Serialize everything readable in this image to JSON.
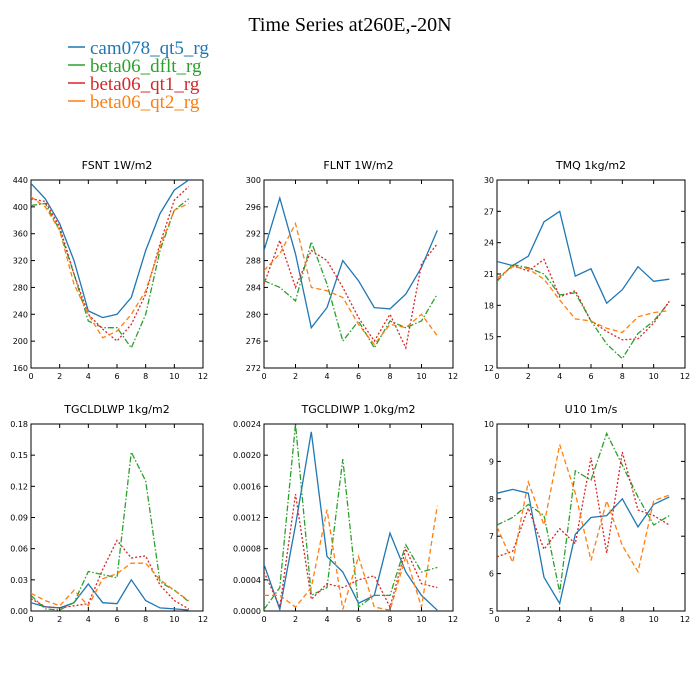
{
  "title": "Time Series at260E,-20N",
  "legend": [
    {
      "name": "cam078_qt5_rg",
      "color": "#1f77b4",
      "dash": "solid"
    },
    {
      "name": "beta06_dflt_rg",
      "color": "#2ca02c",
      "dash": "dashdot"
    },
    {
      "name": "beta06_qt1_rg",
      "color": "#d62728",
      "dash": "dot"
    },
    {
      "name": "beta06_qt2_rg",
      "color": "#ff7f0e",
      "dash": "dash"
    }
  ],
  "chart_data": [
    {
      "type": "line",
      "title": "FSNT   1W/m2",
      "x": [
        0,
        1,
        2,
        3,
        4,
        5,
        6,
        7,
        8,
        9,
        10,
        11
      ],
      "xlim": [
        0,
        12
      ],
      "xticks": [
        "0",
        "2",
        "4",
        "6",
        "8",
        "10",
        "12"
      ],
      "ylim": [
        160,
        440
      ],
      "yticks": [
        "160",
        "200",
        "240",
        "280",
        "320",
        "360",
        "400",
        "440"
      ],
      "series": [
        {
          "name": "cam078_qt5_rg",
          "values": [
            435,
            412,
            375,
            320,
            245,
            235,
            240,
            265,
            335,
            390,
            425,
            440
          ]
        },
        {
          "name": "beta06_dflt_rg",
          "values": [
            402,
            405,
            365,
            300,
            230,
            220,
            220,
            190,
            240,
            335,
            395,
            412
          ]
        },
        {
          "name": "beta06_qt1_rg",
          "values": [
            412,
            408,
            370,
            300,
            240,
            218,
            200,
            225,
            270,
            345,
            410,
            430
          ]
        },
        {
          "name": "beta06_qt2_rg",
          "values": [
            415,
            400,
            365,
            285,
            240,
            205,
            215,
            240,
            275,
            340,
            395,
            405
          ]
        }
      ]
    },
    {
      "type": "line",
      "title": "FLNT   1W/m2",
      "x": [
        0,
        1,
        2,
        3,
        4,
        5,
        6,
        7,
        8,
        9,
        10,
        11
      ],
      "xlim": [
        0,
        12
      ],
      "xticks": [
        "0",
        "2",
        "4",
        "6",
        "8",
        "10",
        "12"
      ],
      "ylim": [
        272,
        300
      ],
      "yticks": [
        "272",
        "276",
        "280",
        "284",
        "288",
        "292",
        "296",
        "300"
      ],
      "series": [
        {
          "name": "cam078_qt5_rg",
          "values": [
            289.5,
            297.3,
            289,
            278,
            281,
            288,
            285,
            281,
            280.8,
            283,
            287,
            292.5
          ]
        },
        {
          "name": "beta06_dflt_rg",
          "values": [
            285,
            284,
            282,
            290.8,
            284.5,
            276,
            279,
            275,
            279,
            278,
            279,
            283
          ]
        },
        {
          "name": "beta06_qt1_rg",
          "values": [
            284.5,
            291,
            284,
            289.5,
            288,
            284,
            279.5,
            276,
            280,
            275,
            287.5,
            290.5
          ]
        },
        {
          "name": "beta06_qt2_rg",
          "values": [
            286.5,
            289,
            293.5,
            284,
            283.5,
            282.5,
            278.5,
            275.5,
            278.5,
            278,
            280,
            276.8
          ]
        }
      ]
    },
    {
      "type": "line",
      "title": "TMQ   1kg/m2",
      "x": [
        0,
        1,
        2,
        3,
        4,
        5,
        6,
        7,
        8,
        9,
        10,
        11
      ],
      "xlim": [
        0,
        12
      ],
      "xticks": [
        "0",
        "2",
        "4",
        "6",
        "8",
        "10",
        "12"
      ],
      "ylim": [
        12,
        30
      ],
      "yticks": [
        "12",
        "15",
        "18",
        "21",
        "24",
        "27",
        "30"
      ],
      "series": [
        {
          "name": "cam078_qt5_rg",
          "values": [
            22.2,
            21.8,
            22.7,
            26,
            27,
            20.8,
            21.5,
            18.2,
            19.5,
            21.7,
            20.3,
            20.5
          ]
        },
        {
          "name": "beta06_dflt_rg",
          "values": [
            20.3,
            21.9,
            21.6,
            21,
            19,
            19.2,
            16.5,
            14.3,
            12.9,
            15.3,
            16.5,
            18.3
          ]
        },
        {
          "name": "beta06_qt1_rg",
          "values": [
            20.5,
            21.8,
            21.3,
            22.4,
            18.8,
            19.4,
            16.5,
            15.5,
            14.7,
            14.8,
            16.3,
            18.4
          ]
        },
        {
          "name": "beta06_qt2_rg",
          "values": [
            20.6,
            21.7,
            21.5,
            20.5,
            18.5,
            16.7,
            16.5,
            15.8,
            15.4,
            16.9,
            17.3,
            17.5
          ]
        }
      ]
    },
    {
      "type": "line",
      "title": "TGCLDLWP   1kg/m2",
      "x": [
        0,
        1,
        2,
        3,
        4,
        5,
        6,
        7,
        8,
        9,
        10,
        11
      ],
      "xlim": [
        0,
        12
      ],
      "xticks": [
        "0",
        "2",
        "4",
        "6",
        "8",
        "10",
        "12"
      ],
      "ylim": [
        0,
        0.18
      ],
      "yticks": [
        "0.00",
        "0.03",
        "0.06",
        "0.09",
        "0.12",
        "0.15",
        "0.18"
      ],
      "series": [
        {
          "name": "cam078_qt5_rg",
          "values": [
            0.008,
            0.004,
            0.003,
            0.008,
            0.026,
            0.008,
            0.007,
            0.03,
            0.01,
            0.003,
            0.002,
            0.001
          ]
        },
        {
          "name": "beta06_dflt_rg",
          "values": [
            0.015,
            0.002,
            0.001,
            0.008,
            0.038,
            0.035,
            0.032,
            0.153,
            0.125,
            0.028,
            0.02,
            0.009
          ]
        },
        {
          "name": "beta06_qt1_rg",
          "values": [
            0.012,
            0.004,
            0.003,
            0.005,
            0.007,
            0.04,
            0.068,
            0.051,
            0.053,
            0.025,
            0.01,
            0.002
          ]
        },
        {
          "name": "beta06_qt2_rg",
          "values": [
            0.017,
            0.01,
            0.005,
            0.02,
            0.005,
            0.031,
            0.036,
            0.046,
            0.046,
            0.03,
            0.02,
            0.01
          ]
        }
      ]
    },
    {
      "type": "line",
      "title": "TGCLDIWP   1.0kg/m2",
      "x": [
        0,
        1,
        2,
        3,
        4,
        5,
        6,
        7,
        8,
        9,
        10,
        11
      ],
      "xlim": [
        0,
        12
      ],
      "xticks": [
        "0",
        "2",
        "4",
        "6",
        "8",
        "10",
        "12"
      ],
      "ylim": [
        0,
        0.0024
      ],
      "yticks": [
        "0.0000",
        "0.0004",
        "0.0008",
        "0.0012",
        "0.0016",
        "0.0020",
        "0.0024"
      ],
      "series": [
        {
          "name": "cam078_qt5_rg",
          "values": [
            0.0006,
            2e-05,
            0.0011,
            0.0023,
            0.0007,
            0.0005,
            0.0001,
            0.0002,
            0.001,
            0.0005,
            0.0002,
            1e-05
          ]
        },
        {
          "name": "beta06_dflt_rg",
          "values": [
            2e-05,
            0.0003,
            0.0024,
            0.0002,
            0.0003,
            0.00195,
            5e-05,
            0.0002,
            0.0002,
            0.00085,
            0.0005,
            0.00056
          ]
        },
        {
          "name": "beta06_qt1_rg",
          "values": [
            0.0005,
            5e-05,
            0.0015,
            0.00015,
            0.00035,
            0.0003,
            0.0004,
            0.00045,
            5e-05,
            0.0008,
            0.00035,
            0.0003
          ]
        },
        {
          "name": "beta06_qt2_rg",
          "values": [
            0.0002,
            0.0002,
            5e-05,
            0.0003,
            0.0013,
            2e-05,
            0.0007,
            5e-05,
            1e-05,
            0.0007,
            5e-05,
            0.00135
          ]
        }
      ]
    },
    {
      "type": "line",
      "title": "U10   1m/s",
      "x": [
        0,
        1,
        2,
        3,
        4,
        5,
        6,
        7,
        8,
        9,
        10,
        11
      ],
      "xlim": [
        0,
        12
      ],
      "xticks": [
        "0",
        "2",
        "4",
        "6",
        "8",
        "10",
        "12"
      ],
      "ylim": [
        5,
        10
      ],
      "yticks": [
        "5",
        "6",
        "7",
        "8",
        "9",
        "10"
      ],
      "series": [
        {
          "name": "cam078_qt5_rg",
          "values": [
            8.15,
            8.25,
            8.15,
            5.9,
            5.2,
            7.05,
            7.5,
            7.55,
            8,
            7.25,
            7.85,
            8.05
          ]
        },
        {
          "name": "beta06_dflt_rg",
          "values": [
            7.3,
            7.5,
            7.85,
            7.55,
            5.5,
            8.75,
            8.5,
            9.75,
            8.9,
            8.05,
            7.3,
            7.55
          ]
        },
        {
          "name": "beta06_qt1_rg",
          "values": [
            6.45,
            6.6,
            7.75,
            6.65,
            7.2,
            6.8,
            9.1,
            6.55,
            9.25,
            7.7,
            7.55,
            7.3
          ]
        },
        {
          "name": "beta06_qt2_rg",
          "values": [
            7.25,
            6.3,
            8.45,
            7.3,
            9.45,
            8.15,
            6.35,
            7.95,
            6.75,
            6.05,
            7.95,
            8.1
          ]
        }
      ]
    }
  ]
}
